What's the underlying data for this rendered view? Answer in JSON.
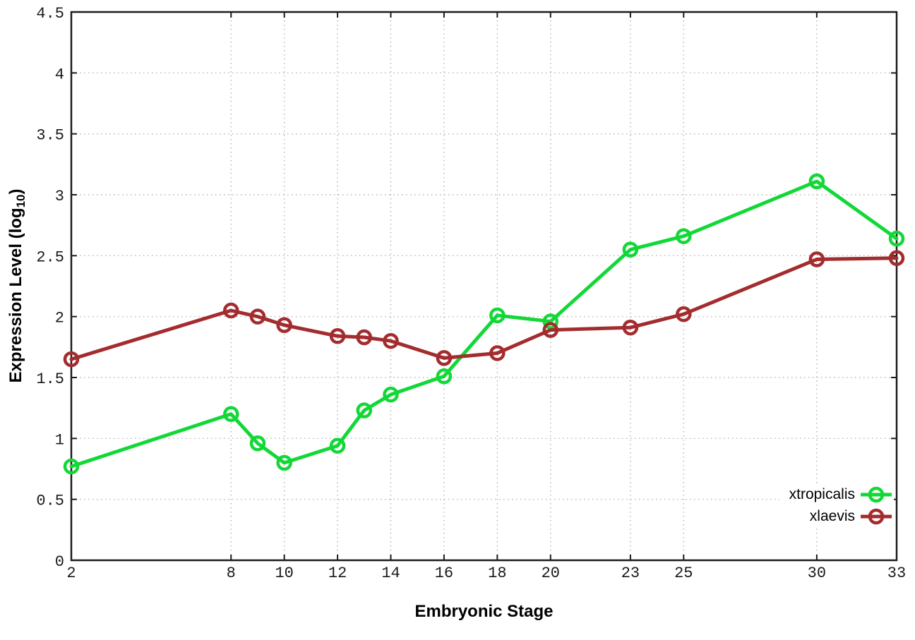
{
  "chart_data": {
    "type": "line",
    "title": "",
    "xlabel": "Embryonic Stage",
    "ylabel": "Expression Level (log10)",
    "ylabel_parts": {
      "main": "Expression Level (log",
      "sub": "10",
      "close": ")"
    },
    "x": [
      2,
      8,
      9,
      10,
      12,
      13,
      14,
      16,
      18,
      20,
      23,
      25,
      30,
      33
    ],
    "xlim": [
      2,
      33
    ],
    "ylim": [
      0,
      4.5
    ],
    "xticks": [
      2,
      8,
      10,
      12,
      14,
      16,
      18,
      20,
      23,
      25,
      30,
      33
    ],
    "xtick_labels": [
      "2",
      "8",
      "10",
      "12",
      "14",
      "16",
      "18",
      "20",
      "23",
      "25",
      "30",
      "33"
    ],
    "yticks": [
      0,
      0.5,
      1,
      1.5,
      2,
      2.5,
      3,
      3.5,
      4,
      4.5
    ],
    "ytick_labels": [
      "0",
      "0.5",
      "1",
      "1.5",
      "2",
      "2.5",
      "3",
      "3.5",
      "4",
      "4.5"
    ],
    "grid": true,
    "grid_style": "dotted",
    "legend_position": "bottom-right",
    "series": [
      {
        "name": "xtropicalis",
        "color": "#12d837",
        "marker": "open-circle",
        "values": [
          0.77,
          1.2,
          0.96,
          0.8,
          0.94,
          1.23,
          1.36,
          1.51,
          2.01,
          1.96,
          2.55,
          2.66,
          3.11,
          2.64
        ]
      },
      {
        "name": "xlaevis",
        "color": "#a32c2e",
        "marker": "open-circle",
        "values": [
          1.65,
          2.05,
          2.0,
          1.93,
          1.84,
          1.83,
          1.8,
          1.66,
          1.7,
          1.89,
          1.91,
          2.02,
          2.47,
          2.48
        ]
      }
    ],
    "colors": {
      "border": "#1c1c1c",
      "grid": "#b3b3b3",
      "tick_text": "#1a1a1a"
    }
  }
}
